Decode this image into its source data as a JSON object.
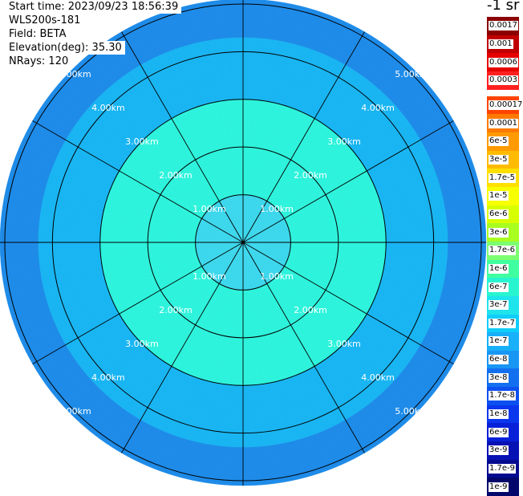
{
  "info": {
    "start_time": "Start time: 2023/09/23 18:56:39",
    "device": "WLS200s-181",
    "field": "Field: BETA",
    "elevation": "Elevation(deg): 35.30",
    "nrays": "NRays: 120"
  },
  "colors": {
    "background": "#ffffff",
    "grid": "#000000",
    "range_label": "#ffffff"
  },
  "chart_data": {
    "type": "heatmap",
    "subtype": "polar-ppi",
    "field": "BETA",
    "elevation_deg": 35.3,
    "n_rays": 120,
    "unit_label": "-1 sr",
    "range_km_max": 5.1,
    "range_rings_km": [
      1,
      2,
      3,
      4,
      5
    ],
    "ring_tick_labels": [
      "1.00km",
      "2.00km",
      "3.00km",
      "4.00km",
      "5.00km"
    ],
    "azimuth_grid_deg": [
      0,
      30,
      60,
      90,
      120,
      150,
      180,
      210,
      240,
      270,
      300,
      330
    ],
    "radial_profile_colors": [
      {
        "range_km": [
          0.0,
          1.0
        ],
        "color": "#3cd7ec"
      },
      {
        "range_km": [
          1.0,
          3.0
        ],
        "color": "#2ef3dc"
      },
      {
        "range_km": [
          3.0,
          4.3
        ],
        "color": "#19b5f2"
      },
      {
        "range_km": [
          4.3,
          5.1
        ],
        "color": "#1e8be8"
      }
    ],
    "colorbar": {
      "upper": [
        {
          "label": "0.0017",
          "color": "#8b0000"
        },
        {
          "label": "0.001",
          "color": "#c00000"
        },
        {
          "label": "0.0006",
          "color": "#e60000"
        },
        {
          "label": "0.0003",
          "color": "#ff2020"
        }
      ],
      "lower": [
        {
          "label": "0.00017",
          "color": "#ff4400"
        },
        {
          "label": "0.0001",
          "color": "#ff7a00"
        },
        {
          "label": "6e-5",
          "color": "#ff9a00"
        },
        {
          "label": "3e-5",
          "color": "#ffbb00"
        },
        {
          "label": "1.7e-5",
          "color": "#ffe000"
        },
        {
          "label": "1e-5",
          "color": "#f8ff00"
        },
        {
          "label": "6e-6",
          "color": "#d8ff00"
        },
        {
          "label": "3e-6",
          "color": "#a8ff20"
        },
        {
          "label": "1.7e-6",
          "color": "#7cff70"
        },
        {
          "label": "1e-6",
          "color": "#40ffa0"
        },
        {
          "label": "6e-7",
          "color": "#28f5d0"
        },
        {
          "label": "3e-7",
          "color": "#20e4ec"
        },
        {
          "label": "1.7e-7",
          "color": "#10cdfa"
        },
        {
          "label": "1e-7",
          "color": "#18b0f8"
        },
        {
          "label": "6e-8",
          "color": "#1896f4"
        },
        {
          "label": "3e-8",
          "color": "#1270f0"
        },
        {
          "label": "1.7e-8",
          "color": "#0d50f0"
        },
        {
          "label": "1e-8",
          "color": "#0a36ee"
        },
        {
          "label": "6e-9",
          "color": "#0820d8"
        },
        {
          "label": "3e-9",
          "color": "#0612b4"
        },
        {
          "label": "1.7e-9",
          "color": "#050a90"
        },
        {
          "label": "1e-9",
          "color": "#03066a"
        }
      ]
    }
  }
}
